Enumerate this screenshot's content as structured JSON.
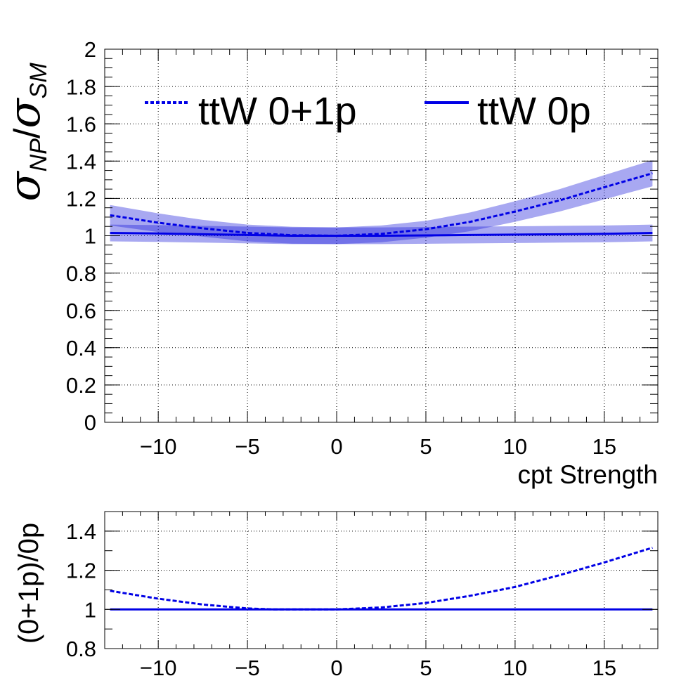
{
  "colors": {
    "series": "#0000e6",
    "band": "#1a1ad9",
    "axis": "#000000"
  },
  "chart_data": [
    {
      "type": "line",
      "title": "",
      "xlabel": "cpt Strength",
      "ylabel_parts": {
        "symbol": "σ",
        "num_sub": "NP",
        "slash": "/",
        "den_sub": "SM"
      },
      "xlim": [
        -13,
        18
      ],
      "ylim": [
        0,
        2
      ],
      "x_ticks": [
        "−10",
        "−5",
        "0",
        "5",
        "10",
        "15"
      ],
      "x_tick_values": [
        -10,
        -5,
        0,
        5,
        10,
        15
      ],
      "y_ticks": [
        "0",
        "0.2",
        "0.4",
        "0.6",
        "0.8",
        "1",
        "1.2",
        "1.4",
        "1.6",
        "1.8",
        "2"
      ],
      "y_tick_values": [
        0,
        0.2,
        0.4,
        0.6,
        0.8,
        1,
        1.2,
        1.4,
        1.6,
        1.8,
        2
      ],
      "grid": true,
      "legend_position": "top",
      "series": [
        {
          "name": "ttW 0+1p",
          "style": "dashed",
          "x": [
            -12.7,
            -10,
            -7.5,
            -5,
            -2.5,
            0,
            2.5,
            5,
            7.5,
            10,
            12.5,
            15,
            17.7
          ],
          "y": [
            1.11,
            1.07,
            1.04,
            1.015,
            1.003,
            1.0,
            1.01,
            1.035,
            1.075,
            1.13,
            1.19,
            1.26,
            1.335
          ],
          "band": [
            0.055,
            0.05,
            0.045,
            0.045,
            0.045,
            0.045,
            0.045,
            0.045,
            0.05,
            0.055,
            0.06,
            0.065,
            0.07
          ]
        },
        {
          "name": "ttW 0p",
          "style": "solid",
          "x": [
            -12.7,
            -10,
            -7.5,
            -5,
            -2.5,
            0,
            2.5,
            5,
            7.5,
            10,
            12.5,
            15,
            17.7
          ],
          "y": [
            1.015,
            1.012,
            1.008,
            1.004,
            1.0,
            1.0,
            1.0,
            1.002,
            1.004,
            1.006,
            1.008,
            1.01,
            1.015
          ],
          "band": [
            0.045,
            0.045,
            0.045,
            0.045,
            0.045,
            0.045,
            0.045,
            0.045,
            0.045,
            0.045,
            0.045,
            0.045,
            0.045
          ]
        }
      ]
    },
    {
      "type": "line",
      "title": "",
      "xlabel": "",
      "ylabel": "(0+1p)/0p",
      "xlim": [
        -13,
        18
      ],
      "ylim": [
        0.8,
        1.5
      ],
      "x_ticks": [
        "−10",
        "−5",
        "0",
        "5",
        "10",
        "15"
      ],
      "x_tick_values": [
        -10,
        -5,
        0,
        5,
        10,
        15
      ],
      "y_ticks": [
        "0.8",
        "1",
        "1.2",
        "1.4"
      ],
      "y_tick_values": [
        0.8,
        1.0,
        1.2,
        1.4
      ],
      "grid": true,
      "series": [
        {
          "style": "dashed",
          "x": [
            -12.7,
            -10,
            -7.5,
            -5,
            -3.5,
            0,
            2.5,
            5,
            7.5,
            10,
            12.5,
            15,
            17.7
          ],
          "y": [
            1.095,
            1.055,
            1.025,
            1.005,
            1.0,
            1.0,
            1.01,
            1.033,
            1.07,
            1.115,
            1.175,
            1.24,
            1.315
          ]
        },
        {
          "style": "solid",
          "x": [
            -12.7,
            17.7
          ],
          "y": [
            1.0,
            1.0
          ]
        }
      ]
    }
  ]
}
